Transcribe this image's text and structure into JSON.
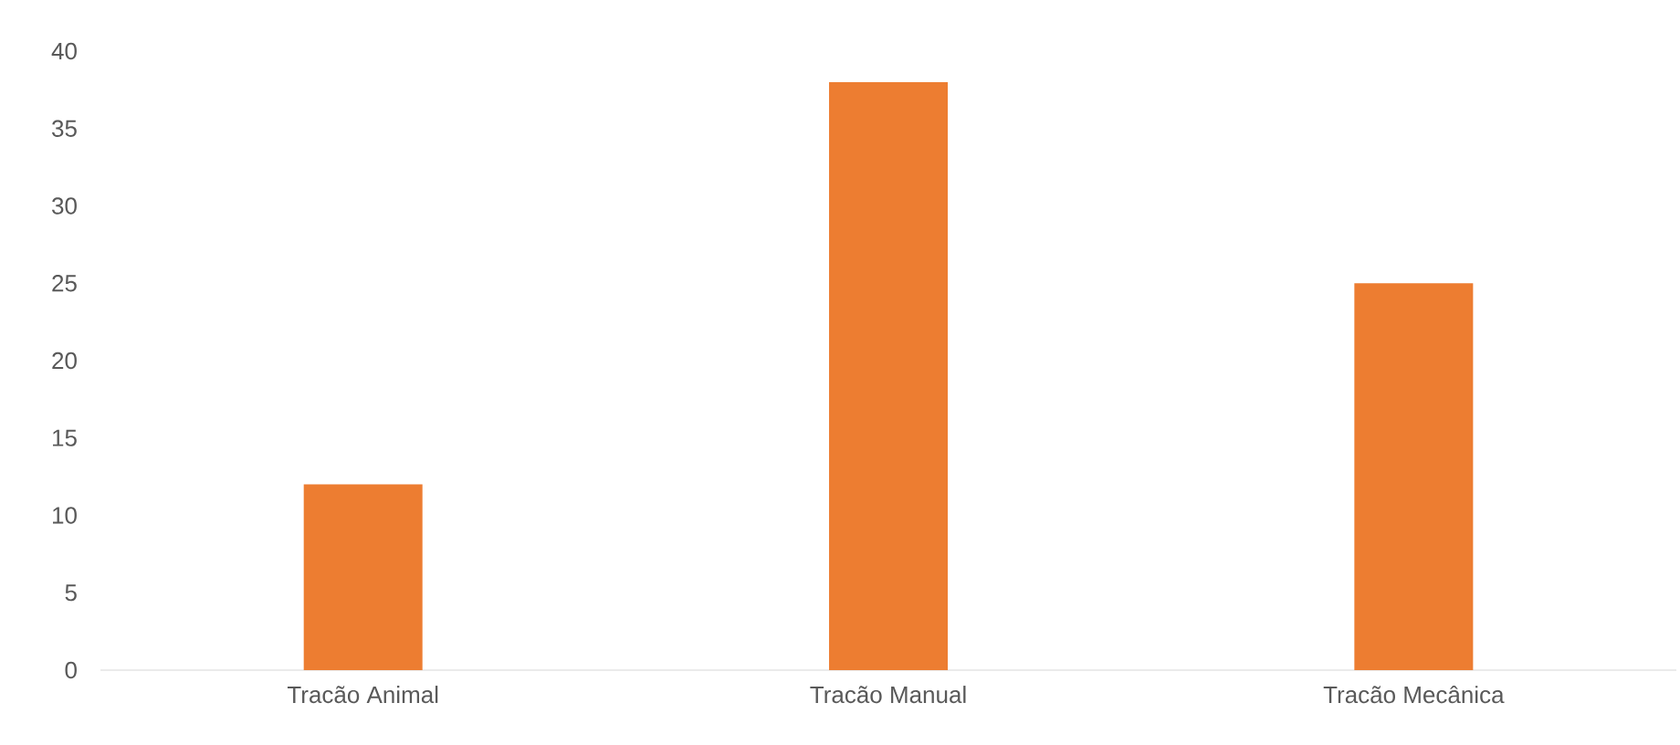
{
  "chart_data": {
    "type": "bar",
    "categories": [
      "Tracão Animal",
      "Tracão Manual",
      "Tracão Mecânica"
    ],
    "values": [
      12,
      38,
      25
    ],
    "color": "#ed7d31",
    "ylim": [
      0,
      40
    ],
    "yticks": [
      0,
      5,
      10,
      15,
      20,
      25,
      30,
      35,
      40
    ]
  }
}
